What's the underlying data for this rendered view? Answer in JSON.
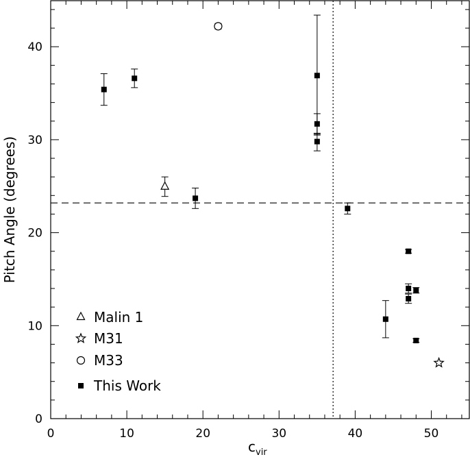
{
  "chart_data": {
    "type": "scatter",
    "title": "",
    "xlabel": "c",
    "xlabel_sub": "vir",
    "ylabel": "Pitch Angle (degrees)",
    "xlim": [
      0,
      55
    ],
    "ylim": [
      0,
      45
    ],
    "xticks": [
      "0",
      "10",
      "20",
      "30",
      "40",
      "50"
    ],
    "yticks": [
      "0",
      "10",
      "20",
      "30",
      "40"
    ],
    "grid": false,
    "legend_position": "bottom-left",
    "reference_lines": {
      "horizontal_y": 23.2,
      "vertical_x": 37.1
    },
    "series": [
      {
        "name": "Malin 1",
        "marker": "open-triangle",
        "points": [
          {
            "x": 15,
            "y": 25.0,
            "yerr_low": 1.1,
            "yerr_high": 1.0
          }
        ]
      },
      {
        "name": "M31",
        "marker": "open-star",
        "points": [
          {
            "x": 51,
            "y": 6.0
          }
        ]
      },
      {
        "name": "M33",
        "marker": "open-circle",
        "points": [
          {
            "x": 22,
            "y": 42.2,
            "yerr_low": 0.3,
            "yerr_high": 0.3
          }
        ]
      },
      {
        "name": "This Work",
        "marker": "filled-square",
        "points": [
          {
            "x": 7,
            "y": 35.4,
            "yerr_low": 1.7,
            "yerr_high": 1.7
          },
          {
            "x": 11,
            "y": 36.6,
            "yerr_low": 1.0,
            "yerr_high": 1.0
          },
          {
            "x": 19,
            "y": 23.7,
            "yerr_low": 1.1,
            "yerr_high": 1.1
          },
          {
            "x": 35,
            "y": 36.9,
            "yerr_low": 6.4,
            "yerr_high": 6.5
          },
          {
            "x": 35,
            "y": 31.7,
            "yerr_low": 1.1,
            "yerr_high": 1.1
          },
          {
            "x": 35,
            "y": 29.8,
            "yerr_low": 1.0,
            "yerr_high": 0.9
          },
          {
            "x": 39,
            "y": 22.6,
            "yerr_low": 0.6,
            "yerr_high": 0.6
          },
          {
            "x": 44,
            "y": 10.7,
            "yerr_low": 2.0,
            "yerr_high": 2.0
          },
          {
            "x": 47,
            "y": 18.0,
            "yerr_low": 0.2,
            "yerr_high": 0.2
          },
          {
            "x": 47,
            "y": 14.0,
            "yerr_low": 0.5,
            "yerr_high": 0.5
          },
          {
            "x": 47,
            "y": 12.9,
            "yerr_low": 0.5,
            "yerr_high": 0.5
          },
          {
            "x": 48,
            "y": 13.8,
            "yerr_low": 0.3,
            "yerr_high": 0.3
          },
          {
            "x": 48,
            "y": 8.4,
            "yerr_low": 0.2,
            "yerr_high": 0.2
          }
        ]
      }
    ]
  }
}
